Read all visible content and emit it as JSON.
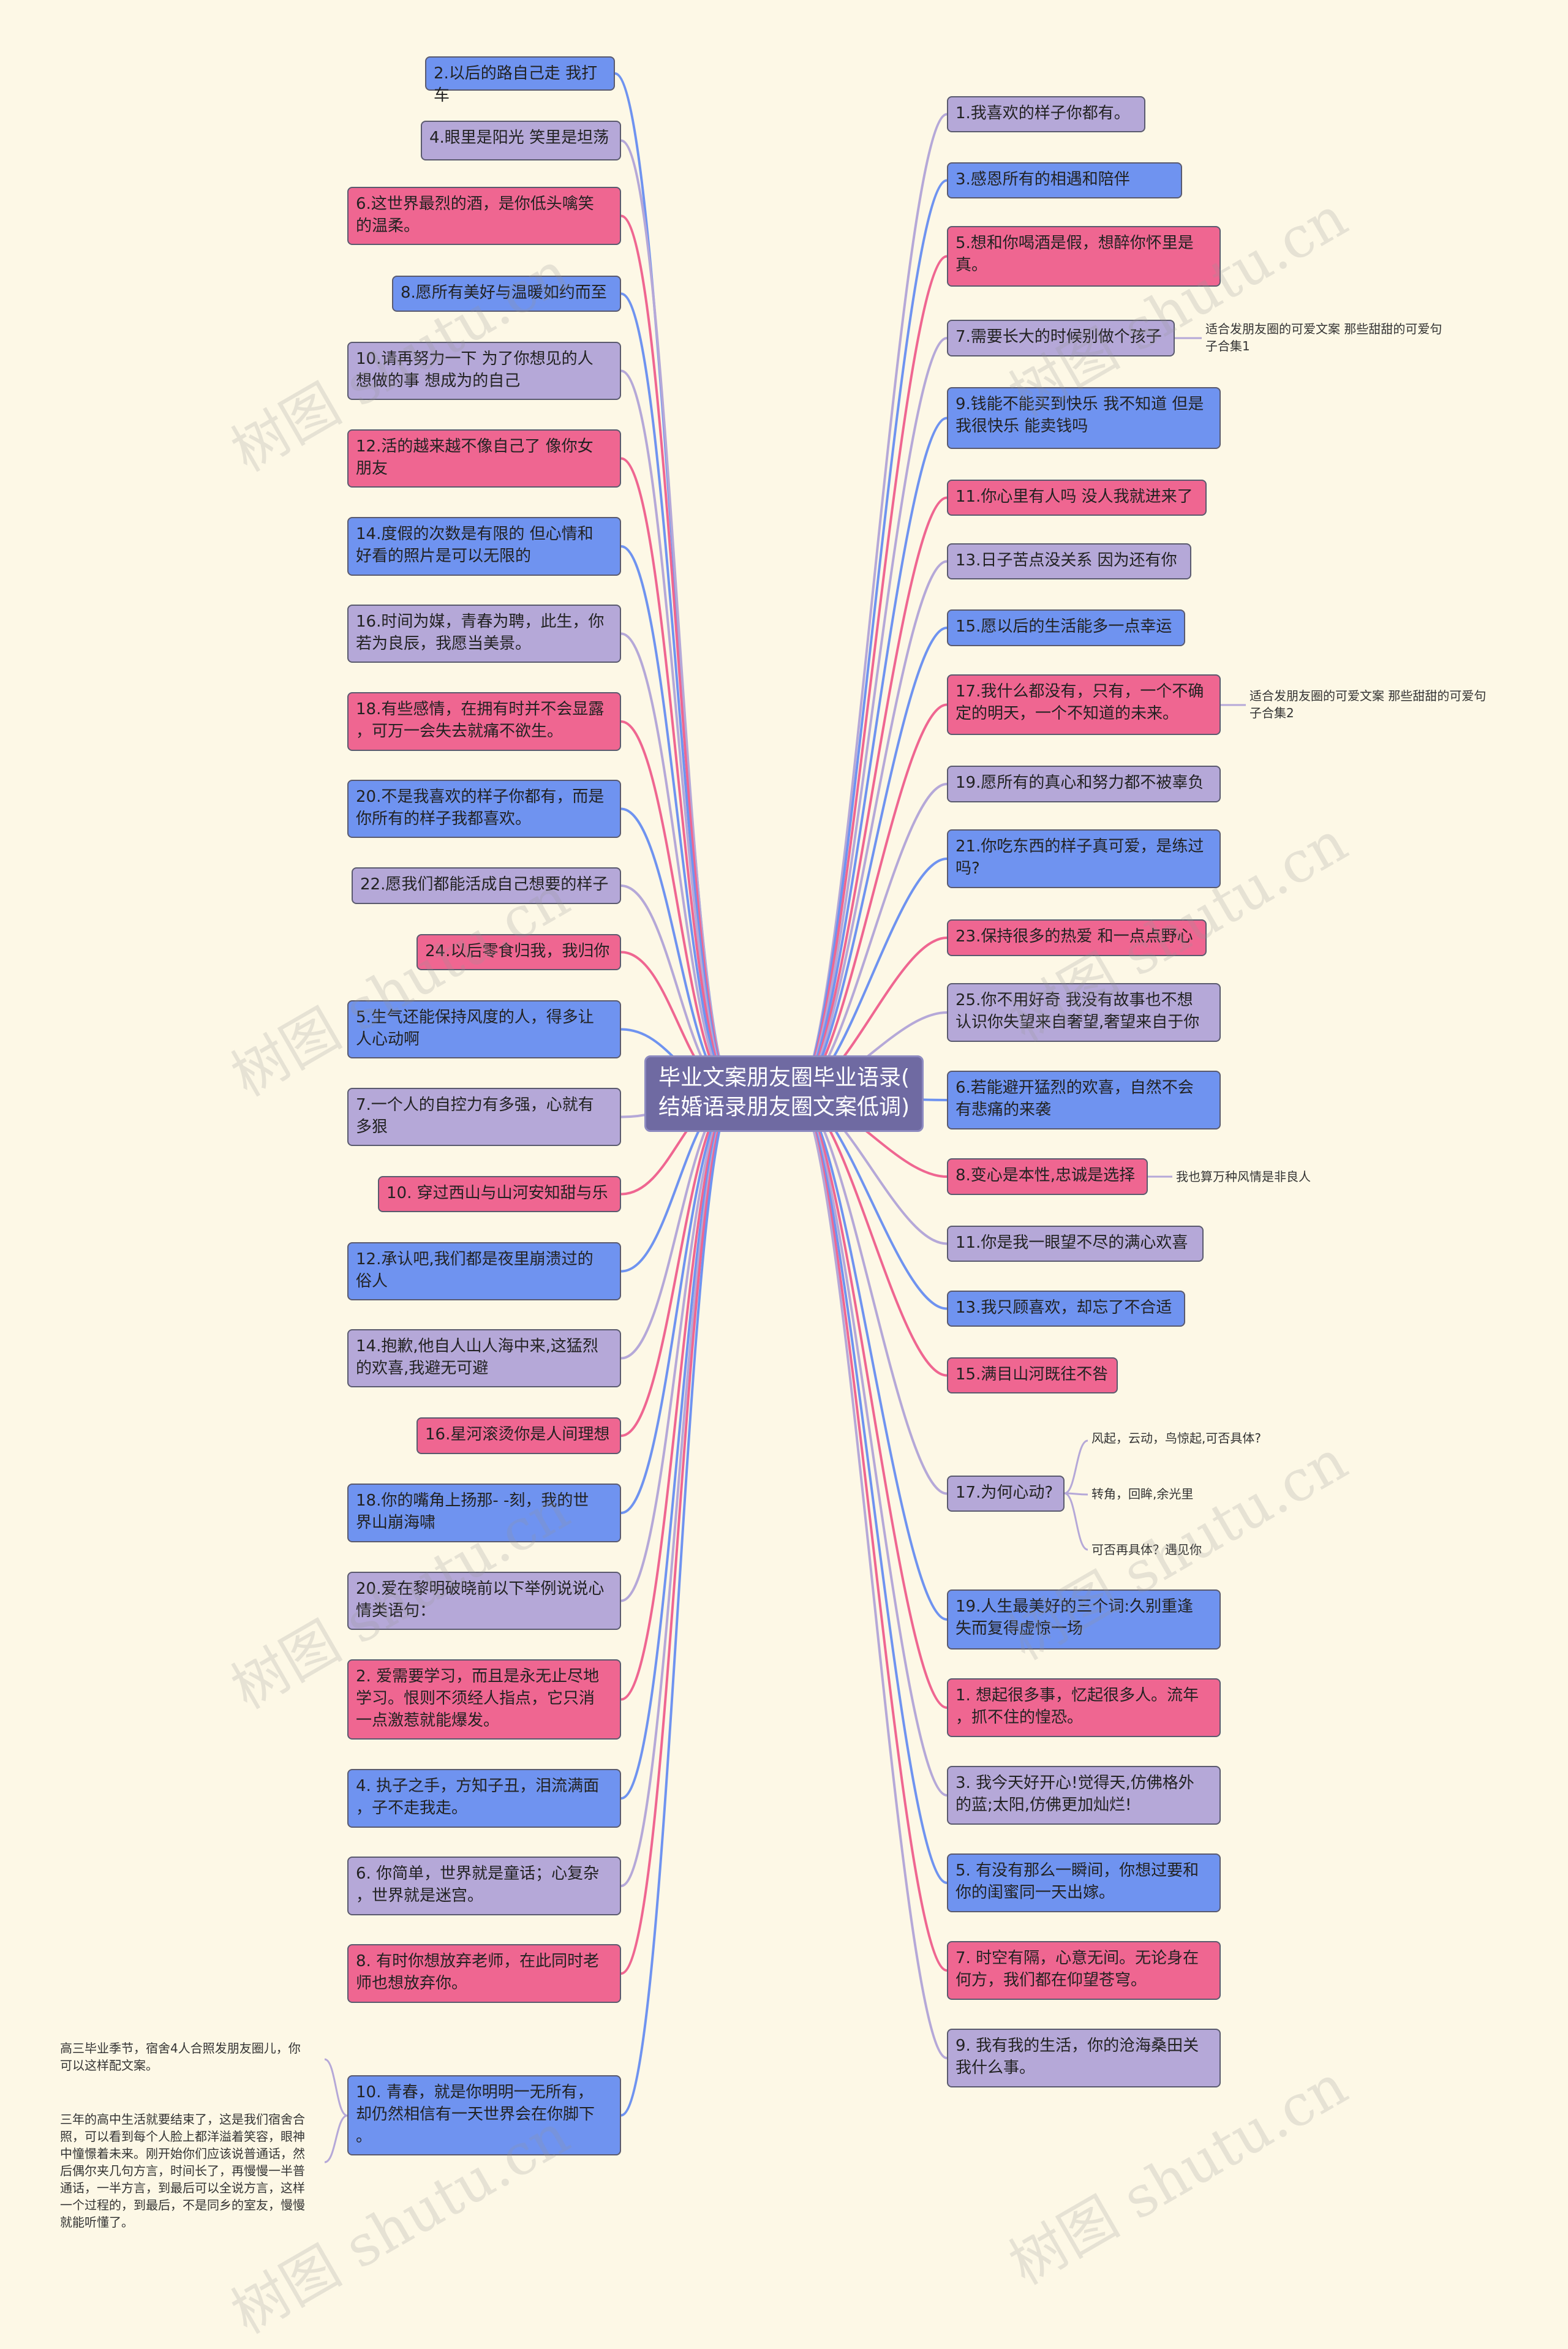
{
  "center": {
    "label": "毕业文案朋友圈毕业语录(结婚语录朋友圈文案低调)",
    "lines": [
      "毕业文案朋友圈毕业语录(",
      "结婚语录朋友圈文案低调)"
    ]
  },
  "colors": {
    "blue": "#6f93f0",
    "pink": "#ef6691",
    "lavender": "#b5a8d8",
    "background": "#fdf8e6"
  },
  "left": [
    {
      "lines": [
        "2.以后的路自己走 我打车"
      ],
      "color": "blue"
    },
    {
      "lines": [
        "4.眼里是阳光 笑里是坦荡"
      ],
      "color": "lavender"
    },
    {
      "lines": [
        "6.这世界最烈的酒，是你低头噙笑",
        "的温柔。"
      ],
      "color": "pink"
    },
    {
      "lines": [
        "8.愿所有美好与温暖如约而至"
      ],
      "color": "blue"
    },
    {
      "lines": [
        "10.请再努力一下 为了你想见的人",
        "想做的事 想成为的自己"
      ],
      "color": "lavender"
    },
    {
      "lines": [
        "12.活的越来越不像自己了 像你女",
        "朋友"
      ],
      "color": "pink"
    },
    {
      "lines": [
        "14.度假的次数是有限的 但心情和",
        "好看的照片是可以无限的"
      ],
      "color": "blue"
    },
    {
      "lines": [
        "16.时间为媒，青春为聘，此生，你",
        "若为良辰，我愿当美景。"
      ],
      "color": "lavender"
    },
    {
      "lines": [
        "18.有些感情，在拥有时并不会显露",
        "，可万一会失去就痛不欲生。"
      ],
      "color": "pink"
    },
    {
      "lines": [
        "20.不是我喜欢的样子你都有，而是",
        "你所有的样子我都喜欢。"
      ],
      "color": "blue"
    },
    {
      "lines": [
        "22.愿我们都能活成自己想要的样子"
      ],
      "color": "lavender"
    },
    {
      "lines": [
        "24.以后零食归我，我归你"
      ],
      "color": "pink"
    },
    {
      "lines": [
        "5.生气还能保持风度的人，得多让",
        "人心动啊"
      ],
      "color": "blue"
    },
    {
      "lines": [
        "7.一个人的自控力有多强，心就有",
        "多狠"
      ],
      "color": "lavender"
    },
    {
      "lines": [
        "10. 穿过西山与山河安知甜与乐"
      ],
      "color": "pink"
    },
    {
      "lines": [
        "12.承认吧,我们都是夜里崩溃过的",
        "俗人"
      ],
      "color": "blue"
    },
    {
      "lines": [
        "14.抱歉,他自人山人海中来,这猛烈",
        "的欢喜,我避无可避"
      ],
      "color": "lavender"
    },
    {
      "lines": [
        "16.星河滚烫你是人间理想"
      ],
      "color": "pink"
    },
    {
      "lines": [
        "18.你的嘴角上扬那- -刻，我的世",
        "界山崩海啸"
      ],
      "color": "blue"
    },
    {
      "lines": [
        "20.爱在黎明破晓前以下举例说说心",
        "情类语句："
      ],
      "color": "lavender"
    },
    {
      "lines": [
        "2. 爱需要学习，而且是永无止尽地",
        "学习。恨则不须经人指点，它只消",
        "一点激惹就能爆发。"
      ],
      "color": "pink"
    },
    {
      "lines": [
        "4. 执子之手，方知子丑，泪流满面",
        "，子不走我走。"
      ],
      "color": "blue"
    },
    {
      "lines": [
        "6. 你简单，世界就是童话；心复杂",
        "，世界就是迷宫。"
      ],
      "color": "lavender"
    },
    {
      "lines": [
        "8. 有时你想放弃老师，在此同时老",
        "师也想放弃你。"
      ],
      "color": "pink"
    },
    {
      "lines": [
        "10. 青春，就是你明明一无所有，",
        "却仍然相信有一天世界会在你脚下",
        "。"
      ],
      "color": "blue"
    }
  ],
  "right": [
    {
      "lines": [
        "1.我喜欢的样子你都有。"
      ],
      "color": "lavender"
    },
    {
      "lines": [
        "3.感恩所有的相遇和陪伴"
      ],
      "color": "blue"
    },
    {
      "lines": [
        "5.想和你喝酒是假，想醉你怀里是",
        "真。"
      ],
      "color": "pink"
    },
    {
      "lines": [
        "7.需要长大的时候别做个孩子"
      ],
      "color": "lavender"
    },
    {
      "lines": [
        "9.钱能不能买到快乐 我不知道 但是",
        "我很快乐 能卖钱吗"
      ],
      "color": "blue"
    },
    {
      "lines": [
        "11.你心里有人吗 没人我就进来了"
      ],
      "color": "pink"
    },
    {
      "lines": [
        "13.日子苦点没关系 因为还有你"
      ],
      "color": "lavender"
    },
    {
      "lines": [
        "15.愿以后的生活能多一点幸运"
      ],
      "color": "blue"
    },
    {
      "lines": [
        "17.我什么都没有，只有，一个不确",
        "定的明天，一个不知道的未来。"
      ],
      "color": "pink"
    },
    {
      "lines": [
        "19.愿所有的真心和努力都不被辜负"
      ],
      "color": "lavender"
    },
    {
      "lines": [
        "21.你吃东西的样子真可爱，是练过",
        "吗?"
      ],
      "color": "blue"
    },
    {
      "lines": [
        "23.保持很多的热爱 和一点点野心"
      ],
      "color": "pink"
    },
    {
      "lines": [
        "25.你不用好奇 我没有故事也不想",
        "认识你失望来自奢望,奢望来自于你"
      ],
      "color": "lavender"
    },
    {
      "lines": [
        "6.若能避开猛烈的欢喜，自然不会",
        "有悲痛的来袭"
      ],
      "color": "blue"
    },
    {
      "lines": [
        "8.变心是本性,忠诚是选择"
      ],
      "color": "pink"
    },
    {
      "lines": [
        "11.你是我一眼望不尽的满心欢喜"
      ],
      "color": "lavender"
    },
    {
      "lines": [
        "13.我只顾喜欢，却忘了不合适"
      ],
      "color": "blue"
    },
    {
      "lines": [
        "15.满目山河既往不咎"
      ],
      "color": "pink"
    },
    {
      "lines": [
        "17.为何心动?"
      ],
      "color": "lavender"
    },
    {
      "lines": [
        "19.人生最美好的三个词:久别重逢",
        "失而复得虚惊一场"
      ],
      "color": "blue"
    },
    {
      "lines": [
        "1. 想起很多事，忆起很多人。流年",
        "，抓不住的惶恐。"
      ],
      "color": "pink"
    },
    {
      "lines": [
        "3. 我今天好开心!觉得天,仿佛格外",
        "的蓝;太阳,仿佛更加灿烂!"
      ],
      "color": "lavender"
    },
    {
      "lines": [
        "5. 有没有那么一瞬间，你想过要和",
        "你的闺蜜同一天出嫁。"
      ],
      "color": "blue"
    },
    {
      "lines": [
        "7. 时空有隔，心意无间。无论身在",
        "何方，我们都在仰望苍穹。"
      ],
      "color": "pink"
    },
    {
      "lines": [
        "9. 我有我的生活，你的沧海桑田关",
        "我什么事。"
      ],
      "color": "lavender"
    }
  ],
  "notes": {
    "r4": [
      "适合发朋友圈的可爱文案 那些甜甜的可爱句",
      "子合集1"
    ],
    "r9": [
      "适合发朋友圈的可爱文案 那些甜甜的可爱句",
      "子合集2"
    ],
    "r15": [
      "我也算万种风情是非良人"
    ],
    "r19a": [
      "风起，云动，鸟惊起,可否具体?"
    ],
    "r19b": [
      "转角，回眸,余光里"
    ],
    "r19c": [
      "可否再具体？遇见你"
    ],
    "l25a": [
      "高三毕业季节，宿舍4人合照发朋友圈儿，你",
      "可以这样配文案。"
    ],
    "l25b": [
      "三年的高中生活就要结束了，这是我们宿舍合",
      "照，可以看到每个人脸上都洋溢着笑容，眼神",
      "中憧憬着未来。刚开始你们应该说普通话，然",
      "后偶尔夹几句方言，时间长了，再慢慢一半普",
      "通话，一半方言，到最后可以全说方言，这样",
      "一个过程的，到最后，不是同乡的室友，慢慢",
      "就能听懂了。"
    ]
  },
  "watermark": "树图 shutu.cn"
}
